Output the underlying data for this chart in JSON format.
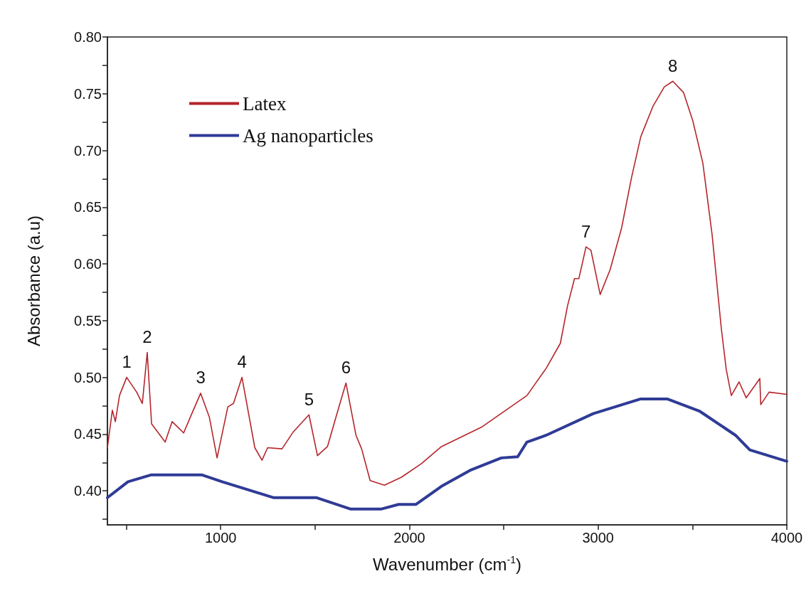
{
  "chart_data": {
    "type": "line",
    "xlabel": "Wavenumber (cm$^{-1}$)",
    "ylabel": "Absorbance (a.u)",
    "xlim": [
      400,
      4000
    ],
    "ylim": [
      0.37,
      0.8
    ],
    "xticks": [
      {
        "value": 500,
        "label": null
      },
      1000,
      {
        "value": 1500,
        "label": null
      },
      2000,
      {
        "value": 2500,
        "label": null
      },
      3000,
      {
        "value": 3500,
        "label": null
      },
      4000
    ],
    "yticks": [
      {
        "value": 0.375,
        "label": null
      },
      {
        "value": 0.4,
        "label": "0.40"
      },
      {
        "value": 0.425,
        "label": null
      },
      0.45,
      {
        "value": 0.475,
        "label": null
      },
      {
        "value": 0.5,
        "label": "0.50"
      },
      {
        "value": 0.525,
        "label": null
      },
      0.55,
      {
        "value": 0.575,
        "label": null
      },
      {
        "value": 0.6,
        "label": "0.60"
      },
      {
        "value": 0.625,
        "label": null
      },
      0.65,
      {
        "value": 0.675,
        "label": null
      },
      {
        "value": 0.7,
        "label": "0.70"
      },
      {
        "value": 0.725,
        "label": null
      },
      0.75,
      {
        "value": 0.775,
        "label": null
      },
      {
        "value": 0.8,
        "label": "0.80"
      }
    ],
    "legend": "top left",
    "series": [
      {
        "name": "Latex",
        "color": "#b5252b",
        "x": [
          400,
          426,
          442,
          464,
          502,
          555,
          585,
          611,
          634,
          706,
          743,
          804,
          842,
          894,
          940,
          981,
          1038,
          1068,
          1113,
          1181,
          1219,
          1249,
          1325,
          1385,
          1468,
          1513,
          1566,
          1611,
          1664,
          1717,
          1747,
          1792,
          1868,
          1958,
          2064,
          2170,
          2381,
          2623,
          2725,
          2800,
          2838,
          2875,
          2898,
          2936,
          2962,
          3011,
          3064,
          3125,
          3177,
          3226,
          3291,
          3351,
          3396,
          3453,
          3502,
          3555,
          3604,
          3653,
          3679,
          3706,
          3747,
          3785,
          3819,
          3857,
          3862,
          3906,
          4000
        ],
        "values": [
          0.438,
          0.471,
          0.461,
          0.484,
          0.5,
          0.487,
          0.477,
          0.522,
          0.459,
          0.443,
          0.461,
          0.451,
          0.466,
          0.486,
          0.465,
          0.429,
          0.474,
          0.477,
          0.5,
          0.438,
          0.427,
          0.438,
          0.437,
          0.452,
          0.467,
          0.431,
          0.439,
          0.465,
          0.495,
          0.449,
          0.437,
          0.409,
          0.405,
          0.412,
          0.424,
          0.439,
          0.456,
          0.484,
          0.508,
          0.53,
          0.563,
          0.587,
          0.587,
          0.615,
          0.612,
          0.573,
          0.595,
          0.632,
          0.676,
          0.712,
          0.739,
          0.756,
          0.761,
          0.751,
          0.726,
          0.689,
          0.626,
          0.543,
          0.507,
          0.484,
          0.496,
          0.482,
          0.49,
          0.499,
          0.476,
          0.487,
          0.485
        ]
      },
      {
        "name": "Ag nanoparticles",
        "color": "#2f3b96",
        "x": [
          400,
          509,
          630,
          902,
          1008,
          1279,
          1506,
          1687,
          1853,
          1943,
          2034,
          2170,
          2321,
          2487,
          2574,
          2623,
          2725,
          2974,
          3226,
          3366,
          3540,
          3728,
          3804,
          4000
        ],
        "values": [
          0.394,
          0.408,
          0.414,
          0.414,
          0.408,
          0.394,
          0.394,
          0.384,
          0.384,
          0.388,
          0.388,
          0.404,
          0.418,
          0.429,
          0.43,
          0.443,
          0.449,
          0.468,
          0.481,
          0.481,
          0.47,
          0.449,
          0.436,
          0.426
        ]
      }
    ],
    "annotations": [
      {
        "text": "1",
        "x": 502,
        "y": 0.5
      },
      {
        "text": "2",
        "x": 611,
        "y": 0.522
      },
      {
        "text": "3",
        "x": 894,
        "y": 0.486
      },
      {
        "text": "4",
        "x": 1113,
        "y": 0.5
      },
      {
        "text": "5",
        "x": 1468,
        "y": 0.467
      },
      {
        "text": "6",
        "x": 1664,
        "y": 0.495
      },
      {
        "text": "7",
        "x": 2936,
        "y": 0.615
      },
      {
        "text": "8",
        "x": 3396,
        "y": 0.761
      }
    ]
  }
}
